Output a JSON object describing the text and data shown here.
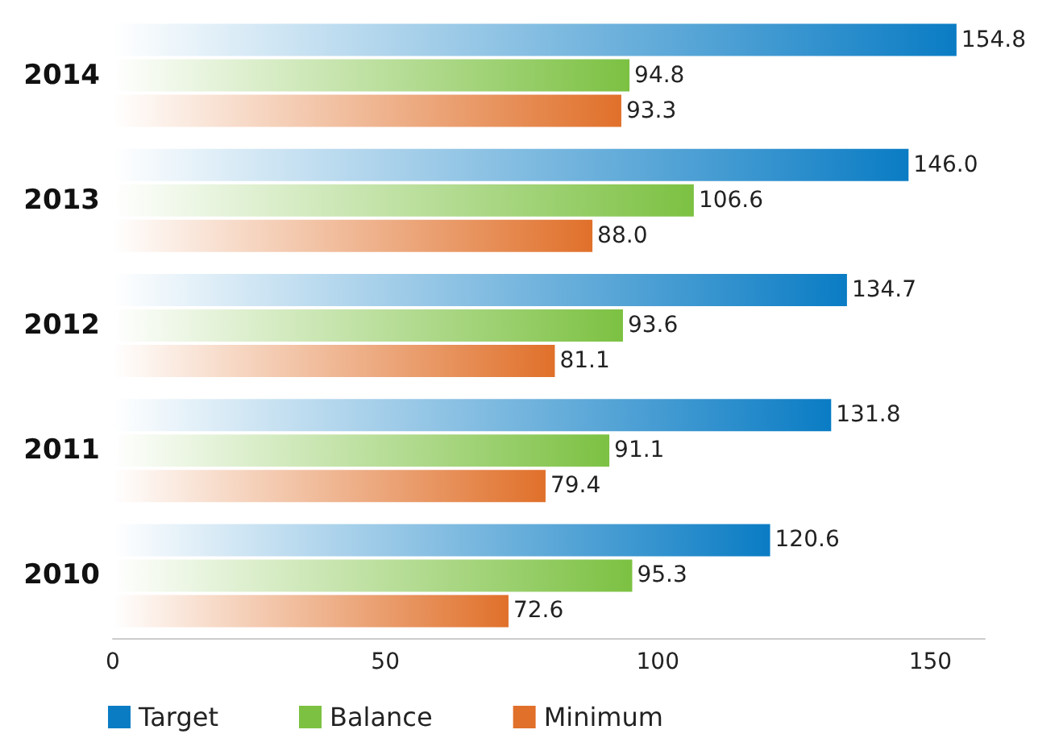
{
  "chart_data": {
    "type": "bar",
    "orientation": "horizontal",
    "categories": [
      "2014",
      "2013",
      "2012",
      "2011",
      "2010"
    ],
    "series": [
      {
        "name": "Target",
        "color": "#0a7cc4",
        "values": [
          154.8,
          146.0,
          134.7,
          131.8,
          120.6
        ],
        "value_labels": [
          "154.8",
          "146.0",
          "134.7",
          "131.8",
          "120.6"
        ]
      },
      {
        "name": "Balance",
        "color": "#7cc142",
        "values": [
          94.8,
          106.6,
          93.6,
          91.1,
          95.3
        ],
        "value_labels": [
          "94.8",
          "106.6",
          "93.6",
          "91.1",
          "95.3"
        ]
      },
      {
        "name": "Minimum",
        "color": "#e0702a",
        "values": [
          93.3,
          88.0,
          81.1,
          79.4,
          72.6
        ],
        "value_labels": [
          "93.3",
          "88.0",
          "81.1",
          "79.4",
          "72.6"
        ]
      }
    ],
    "xlim": [
      0,
      160
    ],
    "xticks": [
      0,
      50,
      100,
      150
    ],
    "grid": false,
    "legend": "bottom left"
  }
}
